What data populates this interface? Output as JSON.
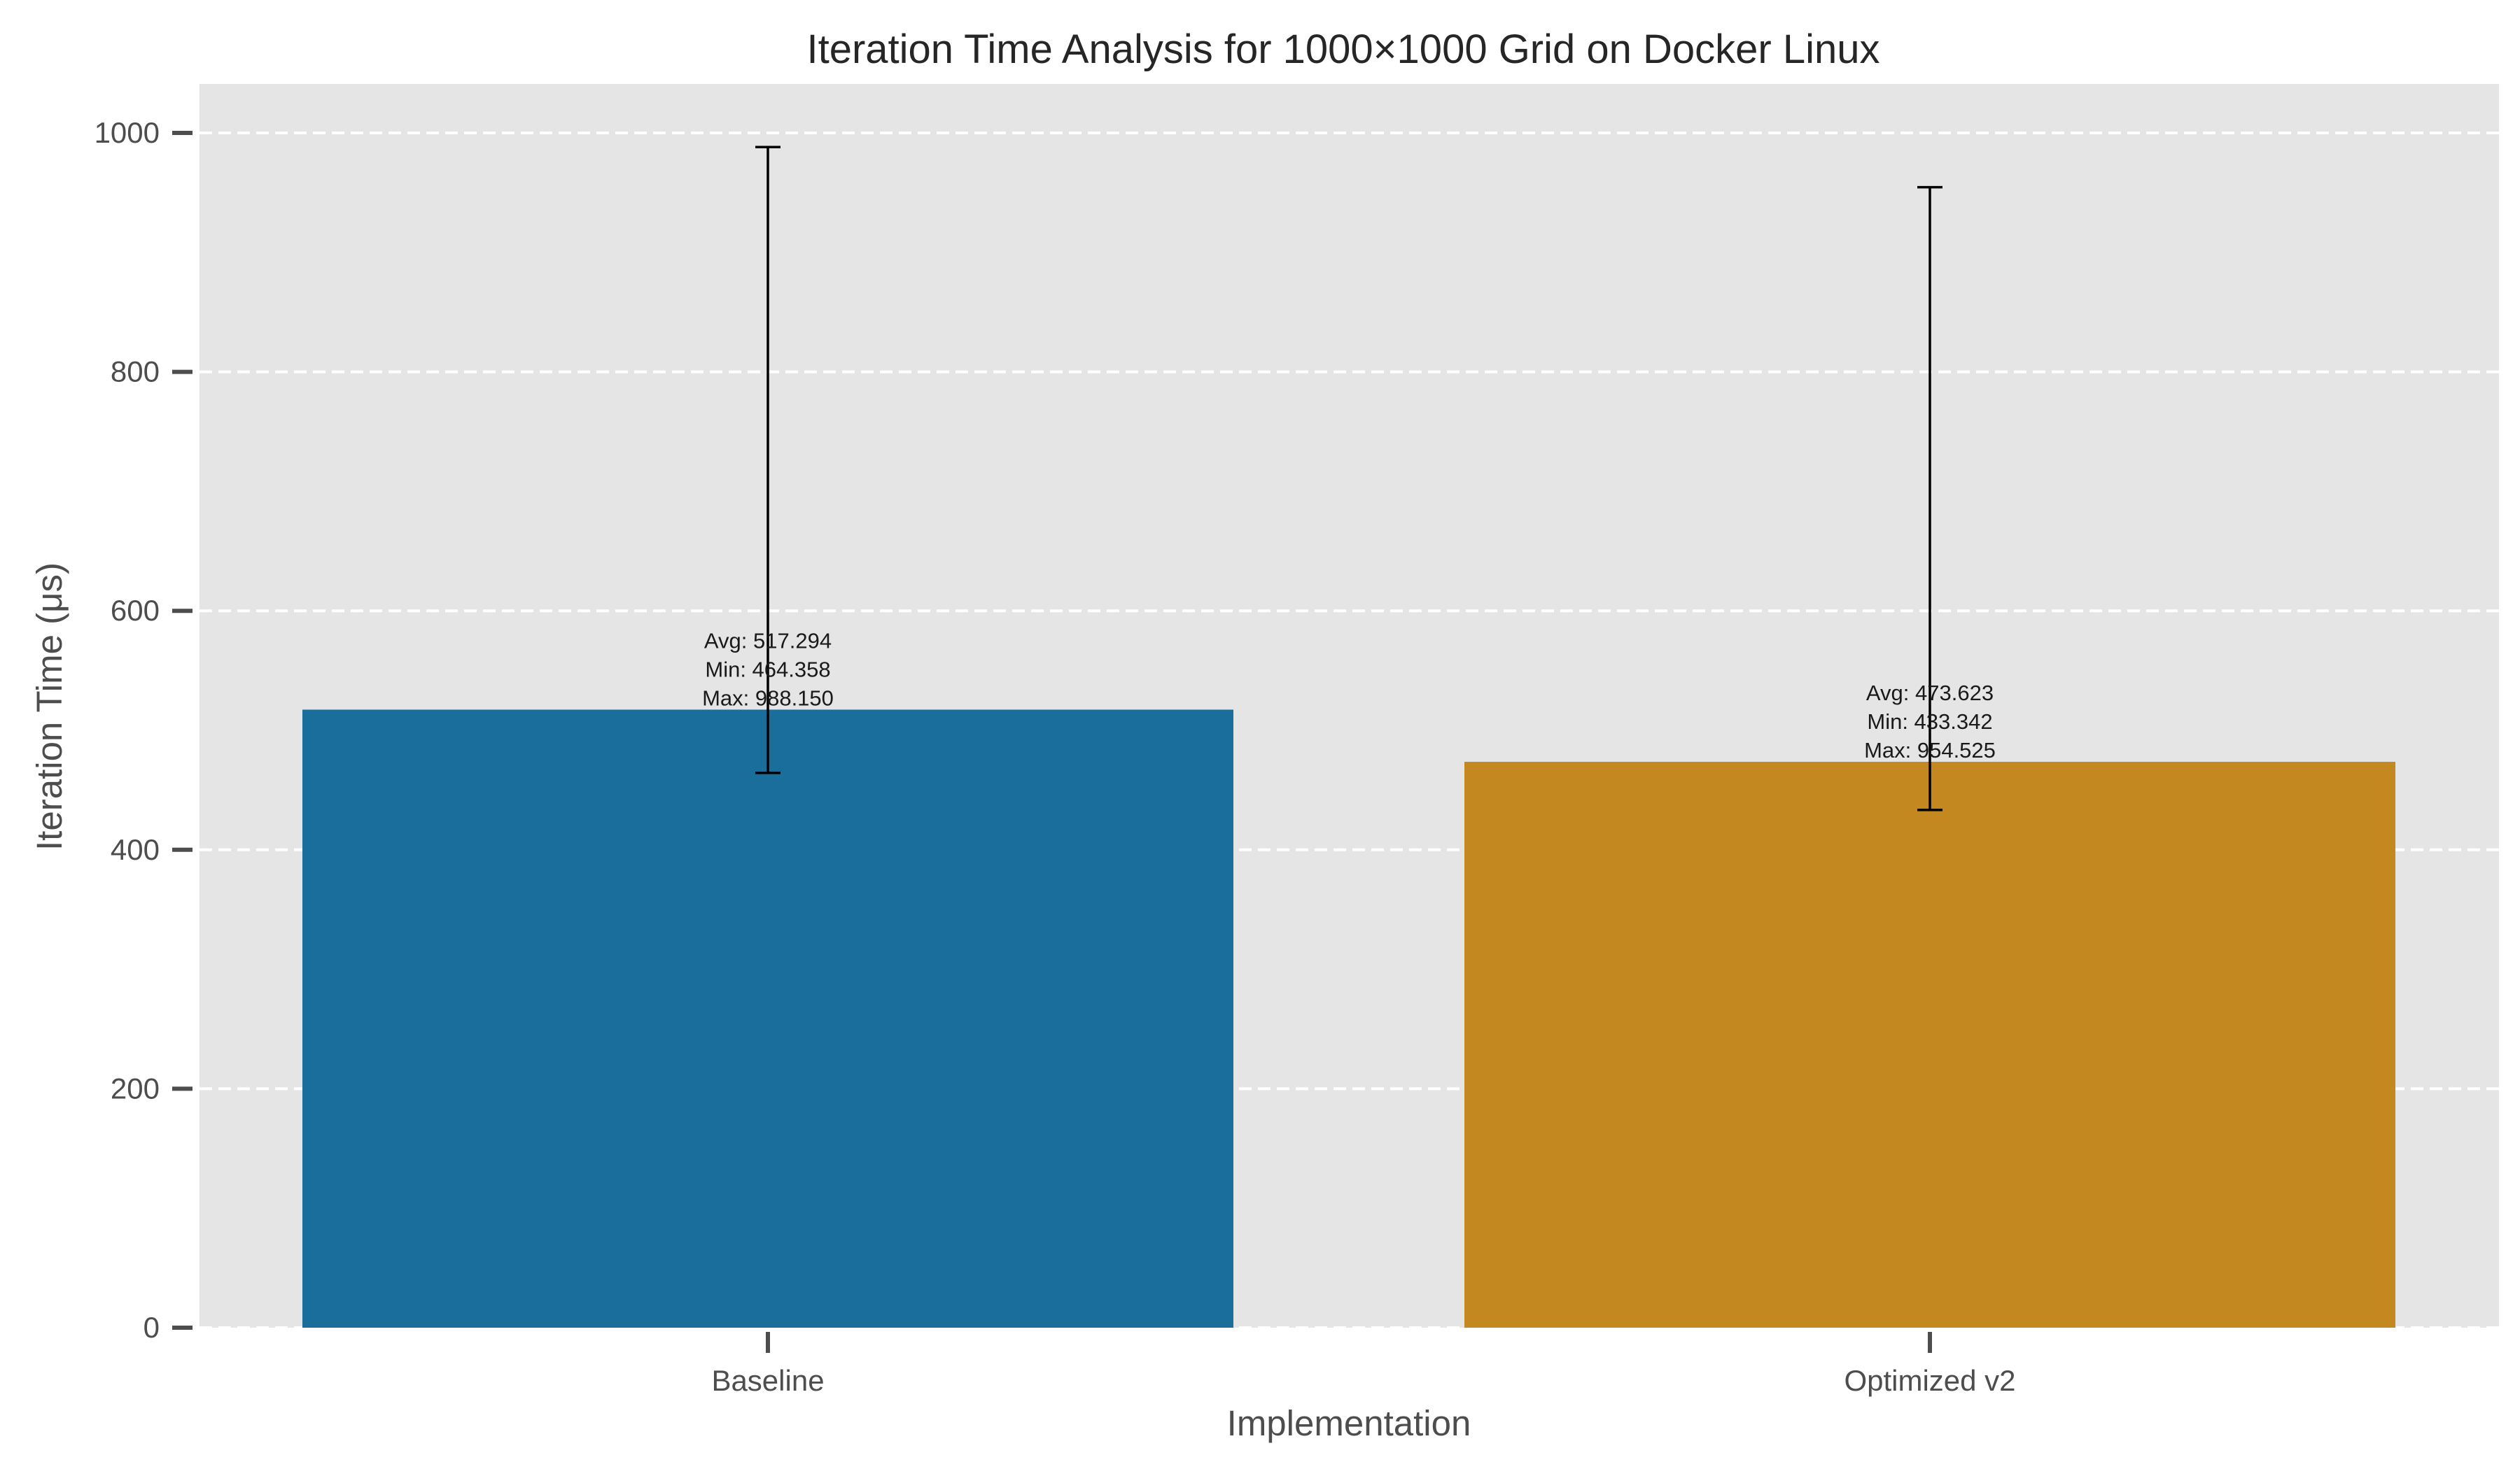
{
  "chart_data": {
    "type": "bar",
    "title": "Iteration Time Analysis for 1000×1000 Grid on Docker Linux",
    "xlabel": "Implementation",
    "ylabel": "Iteration Time (μs)",
    "categories": [
      "Baseline",
      "Optimized v2"
    ],
    "values": [
      517.294,
      473.623
    ],
    "min": [
      464.358,
      433.342
    ],
    "max": [
      988.15,
      954.525
    ],
    "colors": [
      "#1a6e9c",
      "#c38820"
    ],
    "ylim": [
      0,
      1040
    ],
    "yticks": [
      0,
      200,
      400,
      600,
      800,
      1000
    ],
    "grid": true,
    "annotations": [
      [
        "Avg: 517.294",
        "Min: 464.358",
        "Max: 988.150"
      ],
      [
        "Avg: 473.623",
        "Min: 433.342",
        "Max: 954.525"
      ]
    ],
    "background_color": "#e5e5e5",
    "grid_color": "#ffffff",
    "errorbar_color": "#000000"
  }
}
